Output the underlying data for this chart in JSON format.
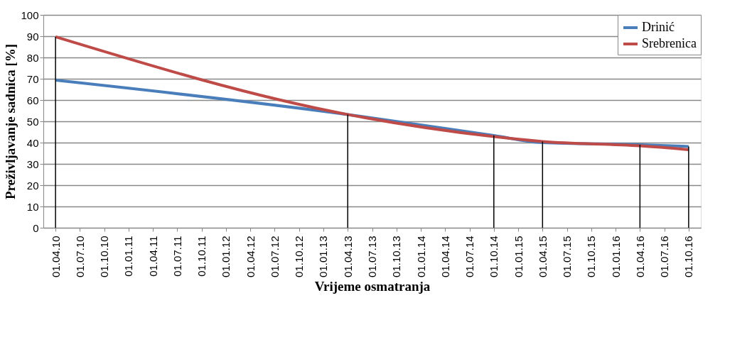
{
  "chart_data": {
    "type": "line",
    "xlabel": "Vrijeme osmatranja",
    "ylabel": "Preživljavanje sadnica [%]",
    "categories": [
      "01.04.10",
      "01.07.10",
      "01.10.10",
      "01.01.11",
      "01.04.11",
      "01.07.11",
      "01.10.11",
      "01.01.12",
      "01.04.12",
      "01.07.12",
      "01.10.12",
      "01.01.13",
      "01.04.13",
      "01.07.13",
      "01.10.13",
      "01.01.14",
      "01.04.14",
      "01.07.14",
      "01.10.14",
      "01.01.15",
      "01.04.15",
      "01.07.15",
      "01.10.15",
      "01.01.16",
      "01.04.16",
      "01.07.16",
      "01.10.16"
    ],
    "series": [
      {
        "name": "Drinić",
        "color": "#4a7ebb",
        "values": [
          69.3,
          null,
          null,
          null,
          null,
          null,
          null,
          null,
          null,
          null,
          null,
          null,
          53.2,
          null,
          null,
          null,
          null,
          null,
          43.3,
          null,
          40.0,
          null,
          null,
          null,
          39.0,
          null,
          38.2
        ]
      },
      {
        "name": "Srebrenica",
        "color": "#be4b48",
        "values": [
          89.7,
          null,
          null,
          null,
          null,
          null,
          null,
          null,
          null,
          null,
          null,
          null,
          53.2,
          null,
          null,
          null,
          null,
          null,
          42.8,
          null,
          40.5,
          null,
          null,
          null,
          38.5,
          null,
          36.7
        ]
      }
    ],
    "ref_lines": [
      {
        "axis": "x",
        "value": "01.04.10",
        "color": "#000000"
      },
      {
        "axis": "x",
        "value": "01.04.13",
        "color": "#000000"
      },
      {
        "axis": "x",
        "value": "01.10.14",
        "color": "#000000"
      },
      {
        "axis": "x",
        "value": "01.04.15",
        "color": "#000000"
      },
      {
        "axis": "x",
        "value": "01.04.16",
        "color": "#000000"
      },
      {
        "axis": "x",
        "value": "01.10.16",
        "color": "#000000"
      }
    ],
    "ylim": [
      0,
      100
    ],
    "yticks": [
      0,
      10,
      20,
      30,
      40,
      50,
      60,
      70,
      80,
      90,
      100
    ],
    "grid": "y",
    "legend": "top right",
    "marker": "none",
    "line_style": "solid"
  }
}
